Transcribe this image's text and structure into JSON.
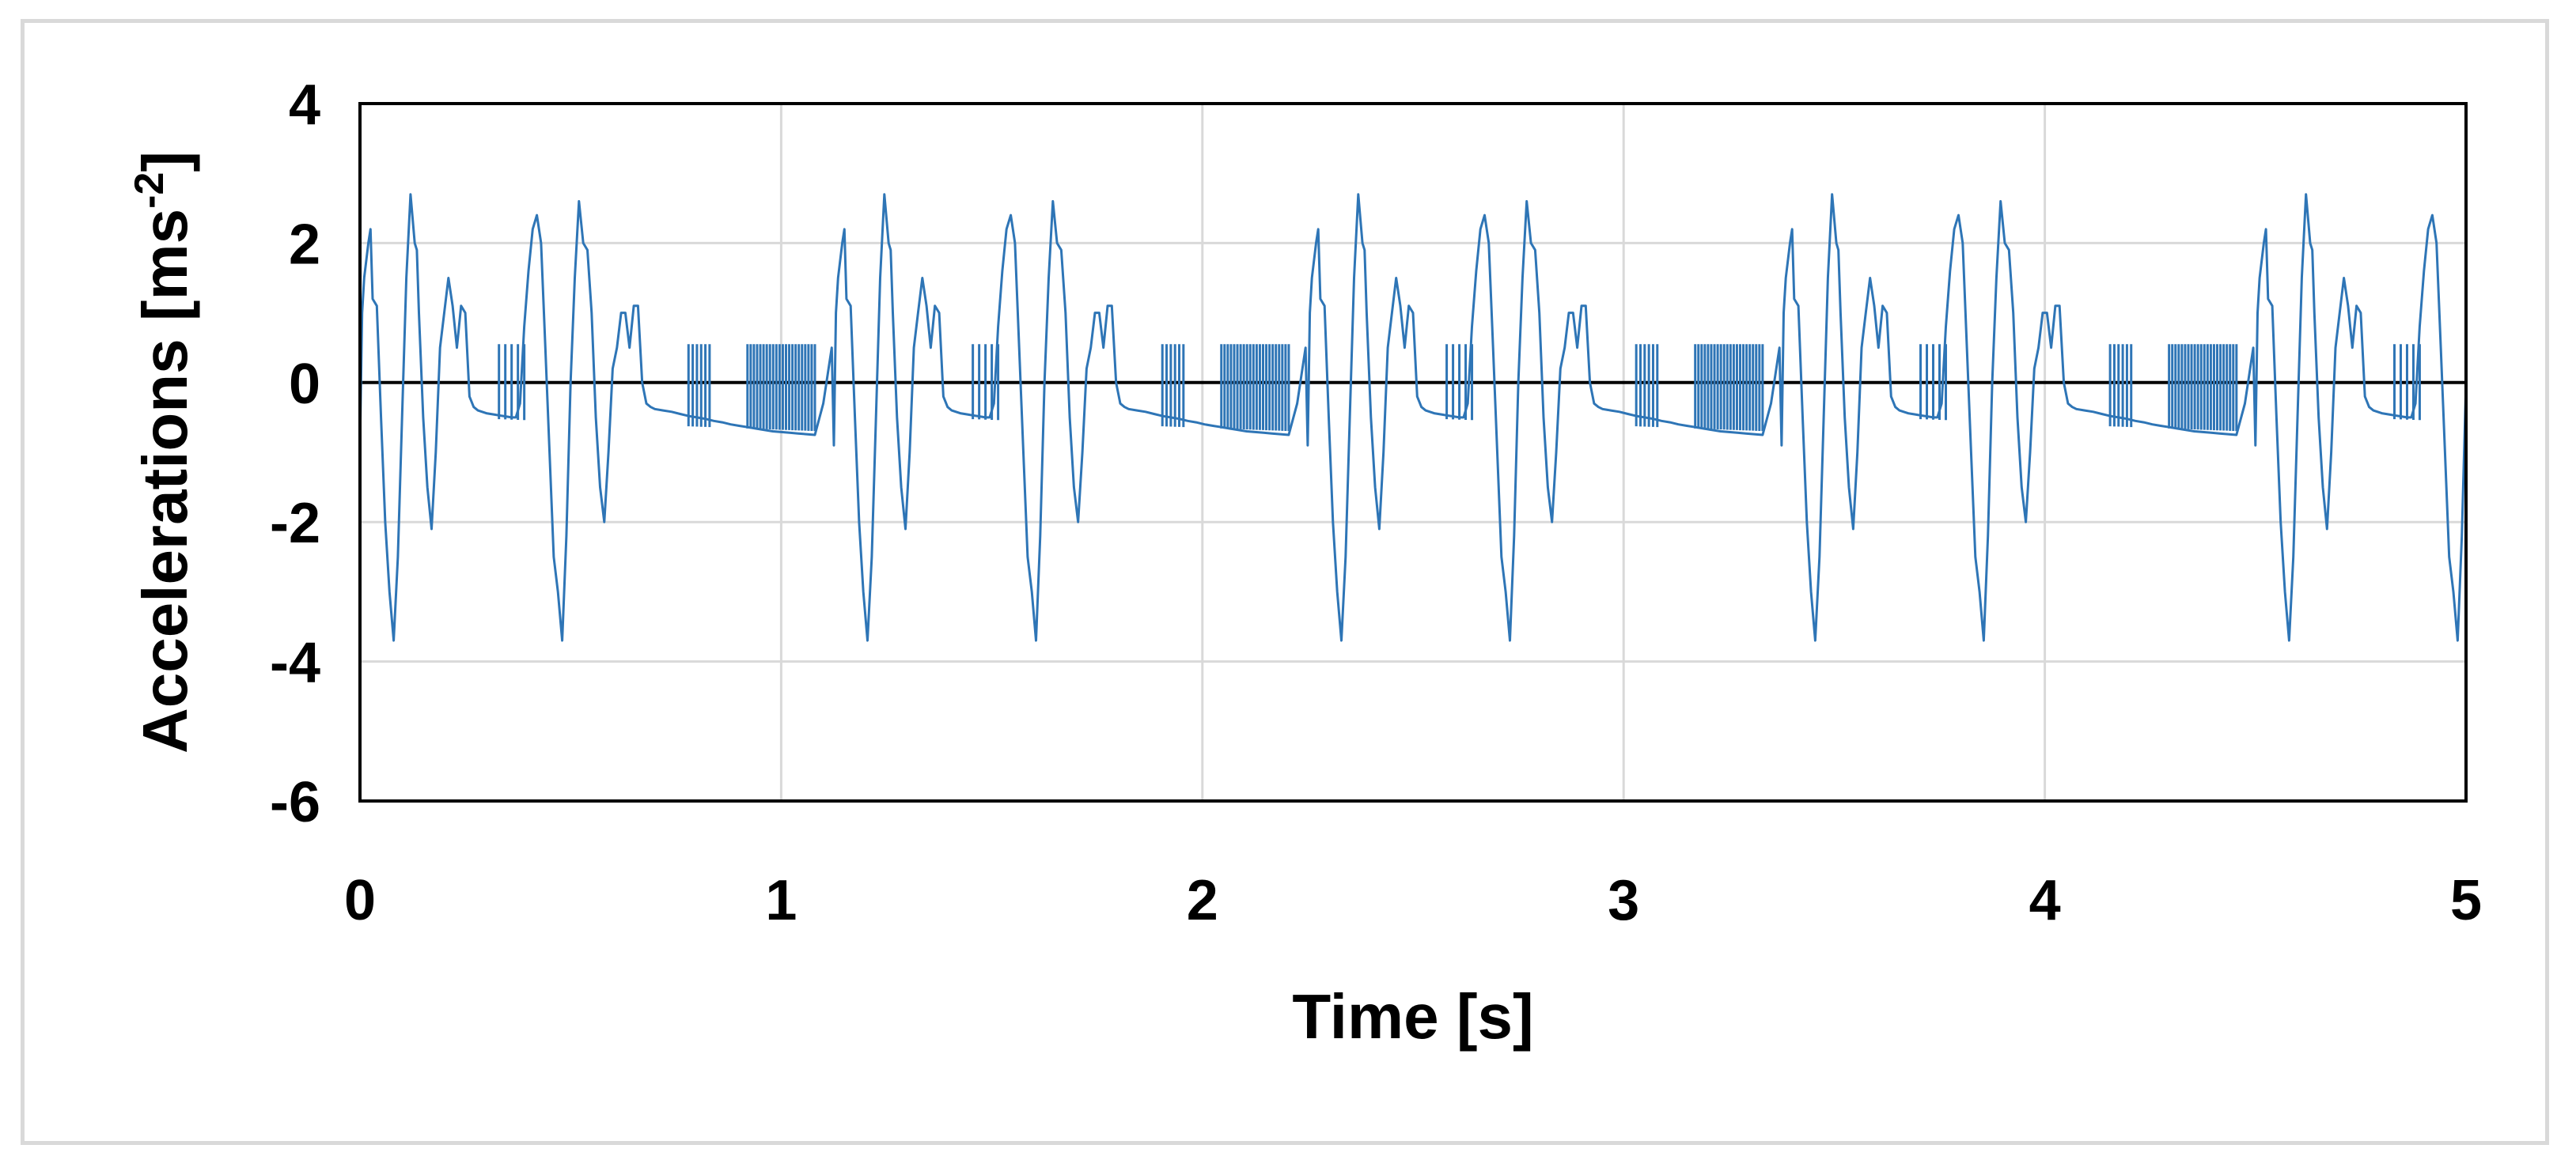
{
  "chart_data": {
    "type": "line",
    "title": "",
    "xlabel": "Time [s]",
    "ylabel_main": "Accelerations [ms",
    "ylabel_sup": "-2",
    "ylabel_end": "]",
    "xlim": [
      0,
      5
    ],
    "ylim": [
      -6,
      4
    ],
    "xticks": [
      0,
      1,
      2,
      3,
      4,
      5
    ],
    "yticks": [
      -6,
      -4,
      -2,
      0,
      2,
      4
    ],
    "xtick_labels": [
      "0",
      "1",
      "2",
      "3",
      "4",
      "5"
    ],
    "ytick_labels": [
      "-6",
      "-4",
      "-2",
      "0",
      "2",
      "4"
    ],
    "grid": true,
    "legend": "none",
    "zero_line": true,
    "series_color": "#2e75b6",
    "period_s": 1.125,
    "series": [
      {
        "x": [
          0.0,
          0.005,
          0.01,
          0.02,
          0.025,
          0.03,
          0.04,
          0.05,
          0.06,
          0.07,
          0.08,
          0.09,
          0.1,
          0.11,
          0.12,
          0.13,
          0.135,
          0.14,
          0.15,
          0.16,
          0.17,
          0.18,
          0.19,
          0.2,
          0.21,
          0.22,
          0.23,
          0.24,
          0.25,
          0.26,
          0.27,
          0.28,
          0.29,
          0.3,
          0.31,
          0.32,
          0.33,
          0.34,
          0.35,
          0.36,
          0.37,
          0.38,
          0.39,
          0.4,
          0.41,
          0.42,
          0.43,
          0.44,
          0.45,
          0.46,
          0.47,
          0.48,
          0.49,
          0.5,
          0.51,
          0.52,
          0.53,
          0.54,
          0.55,
          0.56,
          0.57,
          0.58,
          0.59,
          0.6,
          0.61,
          0.62,
          0.63,
          0.64,
          0.65,
          0.66,
          0.67,
          0.68,
          0.69,
          0.7,
          0.72,
          0.74,
          0.76,
          0.78,
          0.8,
          0.82,
          0.84,
          0.86,
          0.88,
          0.9,
          0.92,
          0.94,
          0.96,
          0.98,
          1.0,
          1.02,
          1.04,
          1.06,
          1.08,
          1.1,
          1.12
        ],
        "y": [
          -0.9,
          1.0,
          1.5,
          2.0,
          2.2,
          1.2,
          1.1,
          -0.5,
          -2.0,
          -3.0,
          -3.7,
          -2.5,
          -0.5,
          1.5,
          2.7,
          2.0,
          1.9,
          1.0,
          -0.5,
          -1.5,
          -2.1,
          -1.0,
          0.5,
          1.0,
          1.5,
          1.1,
          0.5,
          1.1,
          1.0,
          -0.2,
          -0.35,
          -0.4,
          -0.42,
          -0.44,
          -0.45,
          -0.46,
          -0.47,
          -0.48,
          -0.49,
          -0.5,
          -0.5,
          -0.3,
          0.8,
          1.6,
          2.2,
          2.4,
          2.0,
          0.5,
          -1.0,
          -2.5,
          -3.0,
          -3.7,
          -2.2,
          0.0,
          1.5,
          2.6,
          2.0,
          1.9,
          1.0,
          -0.5,
          -1.5,
          -2.0,
          -1.0,
          0.2,
          0.5,
          1.0,
          1.0,
          0.5,
          1.1,
          1.1,
          0.0,
          -0.3,
          -0.35,
          -0.38,
          -0.4,
          -0.42,
          -0.45,
          -0.48,
          -0.5,
          -0.52,
          -0.55,
          -0.57,
          -0.6,
          -0.62,
          -0.64,
          -0.66,
          -0.68,
          -0.7,
          -0.71,
          -0.72,
          -0.73,
          -0.74,
          -0.75,
          -0.3,
          0.5
        ]
      }
    ]
  }
}
